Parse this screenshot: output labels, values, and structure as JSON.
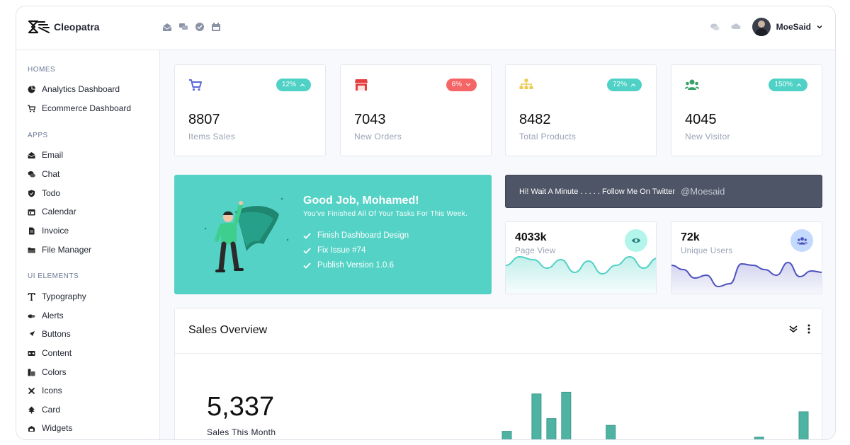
{
  "brand": {
    "name": "Cleopatra"
  },
  "header": {
    "left_icons": [
      "mail-icon",
      "chat-icon",
      "check-icon",
      "calendar-icon"
    ],
    "right_icons": [
      "comments-icon",
      "cloud-icon"
    ],
    "user": {
      "name": "MoeSaid"
    }
  },
  "sidebar": {
    "sections": [
      {
        "title": "HOMES",
        "items": [
          {
            "label": "Analytics Dashboard",
            "icon": "pie-chart-icon"
          },
          {
            "label": "Ecommerce Dashboard",
            "icon": "cart-icon"
          }
        ]
      },
      {
        "title": "APPS",
        "items": [
          {
            "label": "Email",
            "icon": "envelope-icon"
          },
          {
            "label": "Chat",
            "icon": "chat-bubble-icon"
          },
          {
            "label": "Todo",
            "icon": "shield-check-icon"
          },
          {
            "label": "Calendar",
            "icon": "calendar-icon"
          },
          {
            "label": "Invoice",
            "icon": "file-icon"
          },
          {
            "label": "File Manager",
            "icon": "folder-icon"
          }
        ]
      },
      {
        "title": "UI ELEMENTS",
        "items": [
          {
            "label": "Typography",
            "icon": "text-icon"
          },
          {
            "label": "Alerts",
            "icon": "bell-icon"
          },
          {
            "label": "Buttons",
            "icon": "pointer-icon"
          },
          {
            "label": "Content",
            "icon": "box-icon"
          },
          {
            "label": "Colors",
            "icon": "palette-icon"
          },
          {
            "label": "Icons",
            "icon": "tools-icon"
          },
          {
            "label": "Card",
            "icon": "tree-icon"
          },
          {
            "label": "Widgets",
            "icon": "widgets-icon"
          }
        ]
      }
    ]
  },
  "stats": [
    {
      "value": "8807",
      "label": "Items Sales",
      "badge": "12%",
      "badge_color": "#4fd1c5",
      "trend": "up",
      "icon": "cart-icon",
      "icon_color": "#5a67d8"
    },
    {
      "value": "7043",
      "label": "New Orders",
      "badge": "6%",
      "badge_color": "#f56565",
      "trend": "down",
      "icon": "store-icon",
      "icon_color": "#e53e3e"
    },
    {
      "value": "8482",
      "label": "Total Products",
      "badge": "72%",
      "badge_color": "#4fd1c5",
      "trend": "up",
      "icon": "sitemap-icon",
      "icon_color": "#ecc94b"
    },
    {
      "value": "4045",
      "label": "New Visitor",
      "badge": "150%",
      "badge_color": "#4fd1c5",
      "trend": "up",
      "icon": "users-icon",
      "icon_color": "#38a169"
    }
  ],
  "promo": {
    "title": "Good Job, Mohamed!",
    "subtitle": "You've Finished All Of Your Tasks For This Week.",
    "tasks": [
      "Finish Dashboard Design",
      "Fix Issue #74",
      "Publish Version 1.0.6"
    ]
  },
  "twitter": {
    "text": "Hi! Wait A Minute . . . . . Follow Me On Twitter",
    "handle": "@Moesaid"
  },
  "mini_cards": [
    {
      "value": "4033k",
      "label": "Page View",
      "icon": "eye-icon",
      "color": "#4fd1c5",
      "chart_values": [
        40,
        52,
        48,
        36,
        48,
        30,
        46,
        28,
        40,
        52,
        36,
        50
      ]
    },
    {
      "value": "72k",
      "label": "Unique Users",
      "icon": "users-icon",
      "color": "#4c51bf",
      "chart_values": [
        40,
        34,
        22,
        26,
        10,
        14,
        42,
        40,
        34,
        26,
        44,
        24,
        32,
        30
      ]
    }
  ],
  "sales": {
    "title": "Sales Overview",
    "value": "5,337",
    "label": "Sales This Month",
    "bar_color": "#4fb3a3",
    "bar_values": [
      22,
      0,
      66,
      37,
      68,
      0,
      0,
      29,
      0,
      0,
      0,
      0,
      10,
      0,
      0,
      0,
      11,
      15,
      0,
      0,
      45
    ]
  }
}
